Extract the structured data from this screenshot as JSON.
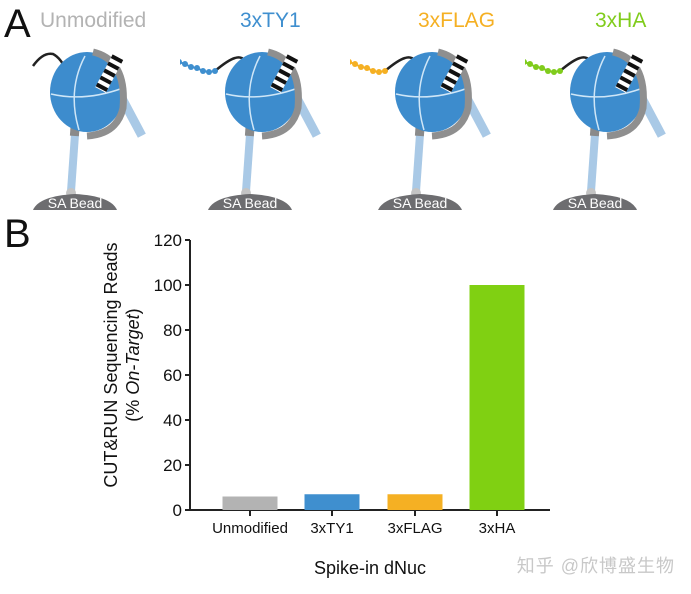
{
  "panel_a": {
    "letter": "A",
    "bead_label": "SA Bead",
    "constructs": [
      {
        "label": "Unmodified",
        "color": "#b3b3b3",
        "tag": false
      },
      {
        "label": "3xTY1",
        "color": "#3f8fcf",
        "tag": true
      },
      {
        "label": "3xFLAG",
        "color": "#f5b023",
        "tag": true
      },
      {
        "label": "3xHA",
        "color": "#80cc1c",
        "tag": true
      }
    ]
  },
  "panel_b": {
    "letter": "B",
    "ylabel_line1": "CUT&RUN Sequencing Reads",
    "ylabel_line2_prefix": "(% ",
    "ylabel_line2_italic": "On-Target",
    "ylabel_line2_suffix": ")",
    "xlabel": "Spike-in dNuc"
  },
  "watermark": "知乎 @欣博盛生物",
  "chart_data": {
    "type": "bar",
    "title": "",
    "categories": [
      "Unmodified",
      "3xTY1",
      "3xFLAG",
      "3xHA"
    ],
    "values": [
      6,
      7,
      7,
      100
    ],
    "colors": [
      "#b3b3b3",
      "#3f8fcf",
      "#f5b023",
      "#80d012"
    ],
    "xlabel": "Spike-in dNuc",
    "ylabel": "CUT&RUN Sequencing Reads (% On-Target)",
    "ylim": [
      0,
      120
    ],
    "yticks": [
      0,
      20,
      40,
      60,
      80,
      100,
      120
    ],
    "grid": false,
    "legend": "none"
  }
}
